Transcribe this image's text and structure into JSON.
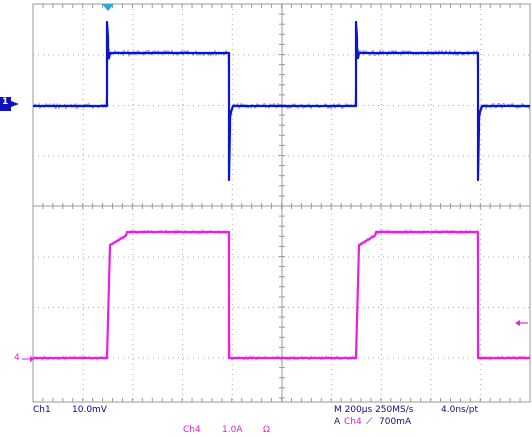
{
  "status": {
    "ch1_label": "Ch1",
    "ch1_scale": "10.0mV",
    "ch4_label": "Ch4",
    "ch4_scale": "1.0A",
    "ch4_coupling": "Ω",
    "timebase": "M 200µs 250MS/s",
    "point_interval": "4.0ns/pt",
    "trigger_prefix": "A",
    "trigger_source": "Ch4",
    "trigger_slope": "⟋",
    "trigger_level": "700mA"
  },
  "markers": {
    "ch1": "1",
    "ch4": "4"
  },
  "colors": {
    "ch1": "#0a1ad8",
    "ch4": "#e81ee0",
    "grid": "#a0a0a0",
    "text_blue": "#0000b4",
    "text_magenta": "#e01fd0",
    "trigger_marker": "#2aa6d8"
  }
}
